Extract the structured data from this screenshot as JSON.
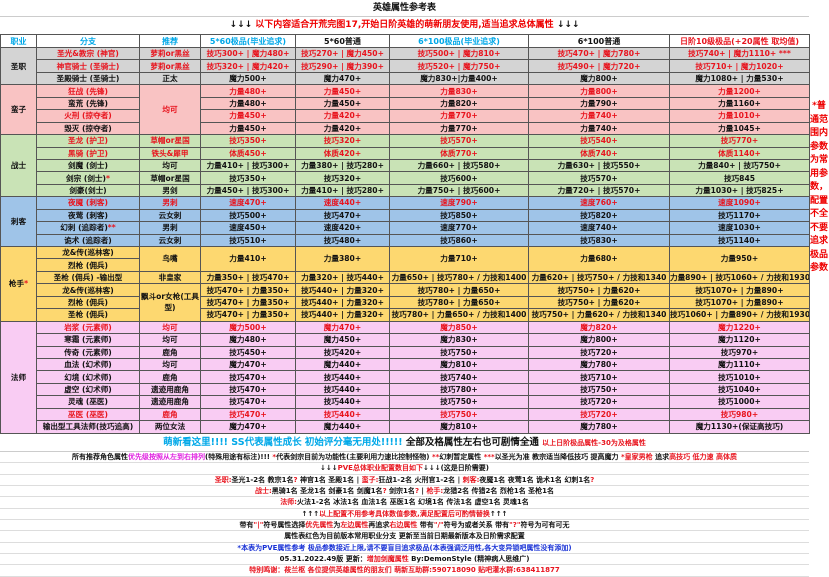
{
  "title": "英雄属性参考表",
  "subtitle": {
    "arrows_l": "↓↓↓",
    "text": " 以下内容适合开荒完图17,开始日阶英雄的萌新朋友使用,适当追求总体属性 ",
    "arrows_r": "↓↓↓"
  },
  "colors": {
    "red": "#e8141e",
    "cyan": "#00a8e8",
    "blue": "#1a33d6",
    "magenta": "#e020e0"
  },
  "headers": [
    {
      "t": "职业",
      "c": "cy"
    },
    {
      "t": "分支",
      "c": "cy"
    },
    {
      "t": "推荐",
      "c": "cy"
    },
    {
      "t": "5*60极品(毕业追求)",
      "c": "cy"
    },
    {
      "t": "5*60普通",
      "c": "bk"
    },
    {
      "t": "6*100极品(毕业追求)",
      "c": "cy"
    },
    {
      "t": "6*100普通",
      "c": "bk"
    },
    {
      "t": "日阶10级极品(+20属性 取均值)",
      "c": "rd"
    }
  ],
  "groups": [
    {
      "name": "圣职",
      "color": "#d4d4d4",
      "rows": [
        {
          "branch": "圣光&教宗 (神官)",
          "rec": "萝莉or黑丝",
          "red": true,
          "cells": [
            "技巧300+ | 魔力480+",
            "技巧270+ | 魔力450+",
            "技巧500+ | 魔力810+",
            "技巧470+ | 魔力780+",
            "技巧740+ | 魔力1110+ ***"
          ]
        },
        {
          "branch": "神官骑士 (圣骑士)",
          "rec": "萝莉or黑丝",
          "red": true,
          "cells": [
            "技巧320+ | 魔力420+",
            "技巧290+ | 魔力390+",
            "技巧520+ | 魔力750+",
            "技巧490+ | 魔力720+",
            "技巧710+ | 魔力1020+"
          ]
        },
        {
          "branch": "圣殿骑士 (圣骑士)",
          "rec": "正太",
          "cells": [
            "魔力500+",
            "魔力470+",
            "魔力830+|力量400+",
            "魔力800+",
            "魔力1080+ | 力量530+"
          ]
        }
      ]
    },
    {
      "name": "蛮子",
      "color": "#f9c3c3",
      "rows": [
        {
          "branch": "狂战 (先锋)",
          "rec": "均可",
          "rec_rows": 4,
          "rec_red": true,
          "red": true,
          "cells": [
            "力量480+",
            "力量450+",
            "力量830+",
            "力量800+",
            "力量1200+"
          ]
        },
        {
          "branch": "蛮荒 (先锋)",
          "cells": [
            "力量480+",
            "力量450+",
            "力量820+",
            "力量790+",
            "力量1160+"
          ]
        },
        {
          "branch": "火刑 (掠夺者)",
          "red": true,
          "cells": [
            "力量450+",
            "力量420+",
            "力量770+",
            "力量740+",
            "力量1010+"
          ]
        },
        {
          "branch": "毁灭 (掠夺者)",
          "cells": [
            "力量450+",
            "力量420+",
            "力量770+",
            "力量740+",
            "力量1045+"
          ]
        }
      ]
    },
    {
      "name": "战士",
      "color": "#c9e3b6",
      "rows": [
        {
          "branch": "圣龙 (护卫)",
          "rec": "草帽or星国",
          "red": true,
          "cells": [
            "技巧350+",
            "技巧320+",
            "技巧570+",
            "技巧540+",
            "技巧770+"
          ]
        },
        {
          "branch": "黑骑 (护卫)",
          "rec": "铁头&犀甲",
          "red": true,
          "cells": [
            "体质450+",
            "体质420+",
            "体质770+",
            "体质740+",
            "体质1140+"
          ]
        },
        {
          "branch": "剑魔 (剑士)",
          "rec": "均可",
          "cells": [
            "力量410+ | 技巧300+",
            "力量380+ | 技巧280+",
            "力量660+ | 技巧580+",
            "力量630+ | 技巧550+",
            "力量840+ | 技巧750+"
          ]
        },
        {
          "branch": "剑宗 (剑士)",
          "mark": "*",
          "rec": "草帽or星国",
          "cells": [
            "技巧350+",
            "技巧320+",
            "技巧600+",
            "技巧570+",
            "技巧845"
          ]
        },
        {
          "branch": "剑豪(剑士)",
          "rec": "男剑",
          "cells": [
            "力量450+ | 技巧300+",
            "力量410+ | 技巧280+",
            "力量750+ | 技巧600+",
            "力量720+ | 技巧570+",
            "力量1030+ | 技巧825+"
          ]
        }
      ]
    },
    {
      "name": "刺客",
      "color": "#9fc4e8",
      "rows": [
        {
          "branch": "夜魇 (刺客)",
          "rec": "男刺",
          "red": true,
          "cells": [
            "速度470+",
            "速度440+",
            "速度790+",
            "速度760+",
            "速度1090+"
          ]
        },
        {
          "branch": "夜莺 (刺客)",
          "rec": "云女刺",
          "cells": [
            "技巧500+",
            "技巧470+",
            "技巧850+",
            "技巧820+",
            "技巧1170+"
          ]
        },
        {
          "branch": "幻刺 (追踪者)",
          "mark": "**",
          "rec": "男刺",
          "cells": [
            "速度450+",
            "速度420+",
            "速度770+",
            "速度740+",
            "速度1030+"
          ]
        },
        {
          "branch": "诡术 (追踪者)",
          "rec": "云女刺",
          "cells": [
            "技巧510+",
            "技巧480+",
            "技巧860+",
            "技巧830+",
            "技巧1140+"
          ]
        }
      ]
    },
    {
      "name": "枪手",
      "mark": "*",
      "color": "#fdd870",
      "rows": [
        {
          "branch": "龙&传(巡林客)",
          "rec": "鸟嘴",
          "rec_rows": 2,
          "value_rows": 2,
          "cells": [
            "力量410+",
            "力量380+",
            "力量710+",
            "力量680+",
            "力量950+"
          ]
        },
        {
          "branch": "烈枪 (佣兵)",
          "cells": null
        },
        {
          "branch": "圣枪 (佣兵) -输出型",
          "rec": "非皇家",
          "cells": [
            "力量350+ | 技巧470+",
            "力量320+ | 技巧440+",
            "力量650+ | 技巧780+ / 力技和1400",
            "力量620+ | 技巧750+ / 力技和1340",
            "力量890+ | 技巧1060+ / 力技和1930"
          ]
        },
        {
          "branch": "龙&传(巡林客)",
          "rec": "飘斗or女枪(工具型)",
          "rec_rows": 3,
          "cells": [
            "技巧470+ | 力量350+",
            "技巧440+ | 力量320+",
            "技巧780+ | 力量650+",
            "技巧750+ | 力量620+",
            "技巧1070+ | 力量890+"
          ]
        },
        {
          "branch": "烈枪 (佣兵)",
          "cells": [
            "技巧470+ | 力量350+",
            "技巧440+ | 力量320+",
            "技巧780+ | 力量650+",
            "技巧750+ | 力量620+",
            "技巧1070+ | 力量890+"
          ]
        },
        {
          "branch": "圣枪 (佣兵)",
          "cells": [
            "技巧470+ | 力量350+",
            "技巧440+ | 力量320+",
            "技巧780+ | 力量650+ / 力技和1400",
            "技巧750+ | 力量620+ / 力技和1340",
            "技巧1060+ | 力量890+ / 力技和1930"
          ]
        }
      ]
    },
    {
      "name": "法师",
      "color": "#f9ccf3",
      "rows": [
        {
          "branch": "岩浆 (元素师)",
          "rec": "均可",
          "red": true,
          "cells": [
            "魔力500+",
            "魔力470+",
            "魔力850+",
            "魔力820+",
            "魔力1220+"
          ]
        },
        {
          "branch": "寒霜 (元素师)",
          "rec": "均可",
          "cells": [
            "魔力480+",
            "魔力450+",
            "魔力830+",
            "魔力800+",
            "魔力1120+"
          ]
        },
        {
          "branch": "传奇 (元素师)",
          "rec": "鹿角",
          "cells": [
            "技巧450+",
            "技巧420+",
            "技巧750+",
            "技巧720+",
            "技巧970+"
          ]
        },
        {
          "branch": "血法 (幻术师)",
          "rec": "均可",
          "cells": [
            "魔力470+",
            "魔力440+",
            "魔力810+",
            "魔力780+",
            "魔力1110+"
          ]
        },
        {
          "branch": "幻境 (幻术师)",
          "rec": "鹿角",
          "cells": [
            "技巧470+",
            "技巧440+",
            "技巧740+",
            "技巧710+",
            "技巧1010+"
          ]
        },
        {
          "branch": "虚空 (幻术师)",
          "rec": "遗迹用鹿角",
          "cells": [
            "技巧470+",
            "技巧440+",
            "技巧780+",
            "技巧750+",
            "技巧1040+"
          ]
        },
        {
          "branch": "灵魂 (巫医)",
          "rec": "遗迹用鹿角",
          "cells": [
            "技巧470+",
            "技巧440+",
            "技巧750+",
            "技巧720+",
            "技巧1000+"
          ]
        },
        {
          "branch": "巫医 (巫医)",
          "rec": "鹿角",
          "red": true,
          "cells": [
            "技巧470+",
            "技巧440+",
            "技巧750+",
            "技巧720+",
            "技巧980+"
          ]
        },
        {
          "branch": "输出型工具法师(技巧追高)",
          "rec": "两位女法",
          "cells": [
            "魔力470+",
            "魔力440+",
            "魔力810+",
            "魔力780+",
            "魔力1130+(保证高技巧)"
          ]
        }
      ]
    }
  ],
  "side_note": "*普通范围内参数为常用参数，配置不全不要追求极品参数",
  "newbie": {
    "a": "萌新看这里!!!!  SS代表属性成长 初始评分毫无用处!!!!! ",
    "b": " 全部及格属性左右也可剧情全通 ",
    "c": " 以上日阶极品属性-30为及格属性"
  },
  "notes": [
    [
      [
        "所有推荐角色属性",
        "bk"
      ],
      [
        "优先级按照从左到右排列",
        "mg"
      ],
      [
        "(特殊用途有标注)!!!  ",
        "bk"
      ],
      [
        "*",
        "rd"
      ],
      [
        "代表剑宗目前为功能性(主要利用力速比控制怪物) ",
        "bk"
      ],
      [
        "**",
        "rd"
      ],
      [
        "幻刺暂定属性 ",
        "bk"
      ],
      [
        "***",
        "rd"
      ],
      [
        "以圣光为准 教宗适当降低技巧 提高魔力 ",
        "bk"
      ],
      [
        "*皇家男枪",
        "rd"
      ],
      [
        " 追求",
        "bk"
      ],
      [
        "高技巧 低力速 高体质",
        "rd"
      ]
    ],
    [
      [
        "↓↓↓",
        "bk"
      ],
      [
        "PVE总体职业配置数目如下",
        "rd"
      ],
      [
        "↓↓↓(这是日阶需要)",
        "bk"
      ]
    ],
    [
      [
        "圣职:",
        "rd"
      ],
      [
        "圣光1-2名 教宗1名",
        "bk"
      ],
      [
        "?",
        "rd"
      ],
      [
        " 神官1名 圣殿1名  |  ",
        "bk"
      ],
      [
        "蛮子:",
        "rd"
      ],
      [
        "狂战1-2名 火刑官1-2名  |  ",
        "bk"
      ],
      [
        "刺客:",
        "rd"
      ],
      [
        "夜魇1名 夜莺1名 诡术1名 幻刺1名",
        "bk"
      ],
      [
        "?",
        "rd"
      ]
    ],
    [
      [
        "战士:",
        "rd"
      ],
      [
        "黑骑1名 圣龙1名 剑豪1名 剑魔1名",
        "bk"
      ],
      [
        "?",
        "rd"
      ],
      [
        " 剑宗1名",
        "bk"
      ],
      [
        "?",
        "rd"
      ],
      [
        " | ",
        "bk"
      ],
      [
        "枪手:",
        "rd"
      ],
      [
        "龙猎2名 传猎2名 烈枪1名 圣枪1名",
        "bk"
      ]
    ],
    [
      [
        "法师:",
        "rd"
      ],
      [
        "火法1-2名 冰法1名 血法1名 巫医1名 幻境1名 传法1名 虚空1名 灵魂1名",
        "bk"
      ]
    ],
    [
      [
        "↑↑↑",
        "bk"
      ],
      [
        "以上配置不用参考具体数值参数,满足配置后可酌情替换",
        "rd"
      ],
      [
        "↑↑↑",
        "bk"
      ]
    ],
    [
      [
        "带有",
        "bk"
      ],
      [
        "\"|\"",
        "rd"
      ],
      [
        "符号属性选择",
        "bk"
      ],
      [
        "优先属性",
        "rd"
      ],
      [
        "为",
        "bk"
      ],
      [
        "左边属性",
        "rd"
      ],
      [
        "再追求",
        "bk"
      ],
      [
        "右边属性",
        "rd"
      ],
      [
        " 带有",
        "bk"
      ],
      [
        "\"/\"",
        "rd"
      ],
      [
        "符号为或者关系 带有",
        "bk"
      ],
      [
        "\"?\"",
        "rd"
      ],
      [
        "符号为可有可无",
        "bk"
      ]
    ],
    [
      [
        "属性表红色为目前版本常用职业分支 更新至当前日期最新版本及日阶需求配置",
        "bk"
      ]
    ],
    [
      [
        "*本表为PVE属性参考 极品参数接近上限,请不要盲目追求极品(本表强调泛用性,各大变异锁吧属性没有添加)",
        "bl"
      ]
    ],
    [
      [
        "05.31.2022.49版  更新：",
        "bk"
      ],
      [
        "增加剑魔属性",
        "rd"
      ],
      [
        "  By:DemonStyle (精神病人思维广)",
        "bk"
      ]
    ],
    [
      [
        "特别鸣谢：",
        "rd"
      ],
      [
        "莜兰枢",
        "rd"
      ],
      [
        " 各位提供英雄属性的朋友们   萌新互助群:590718090 贴吧灌水群:638411877",
        "rd"
      ]
    ]
  ]
}
